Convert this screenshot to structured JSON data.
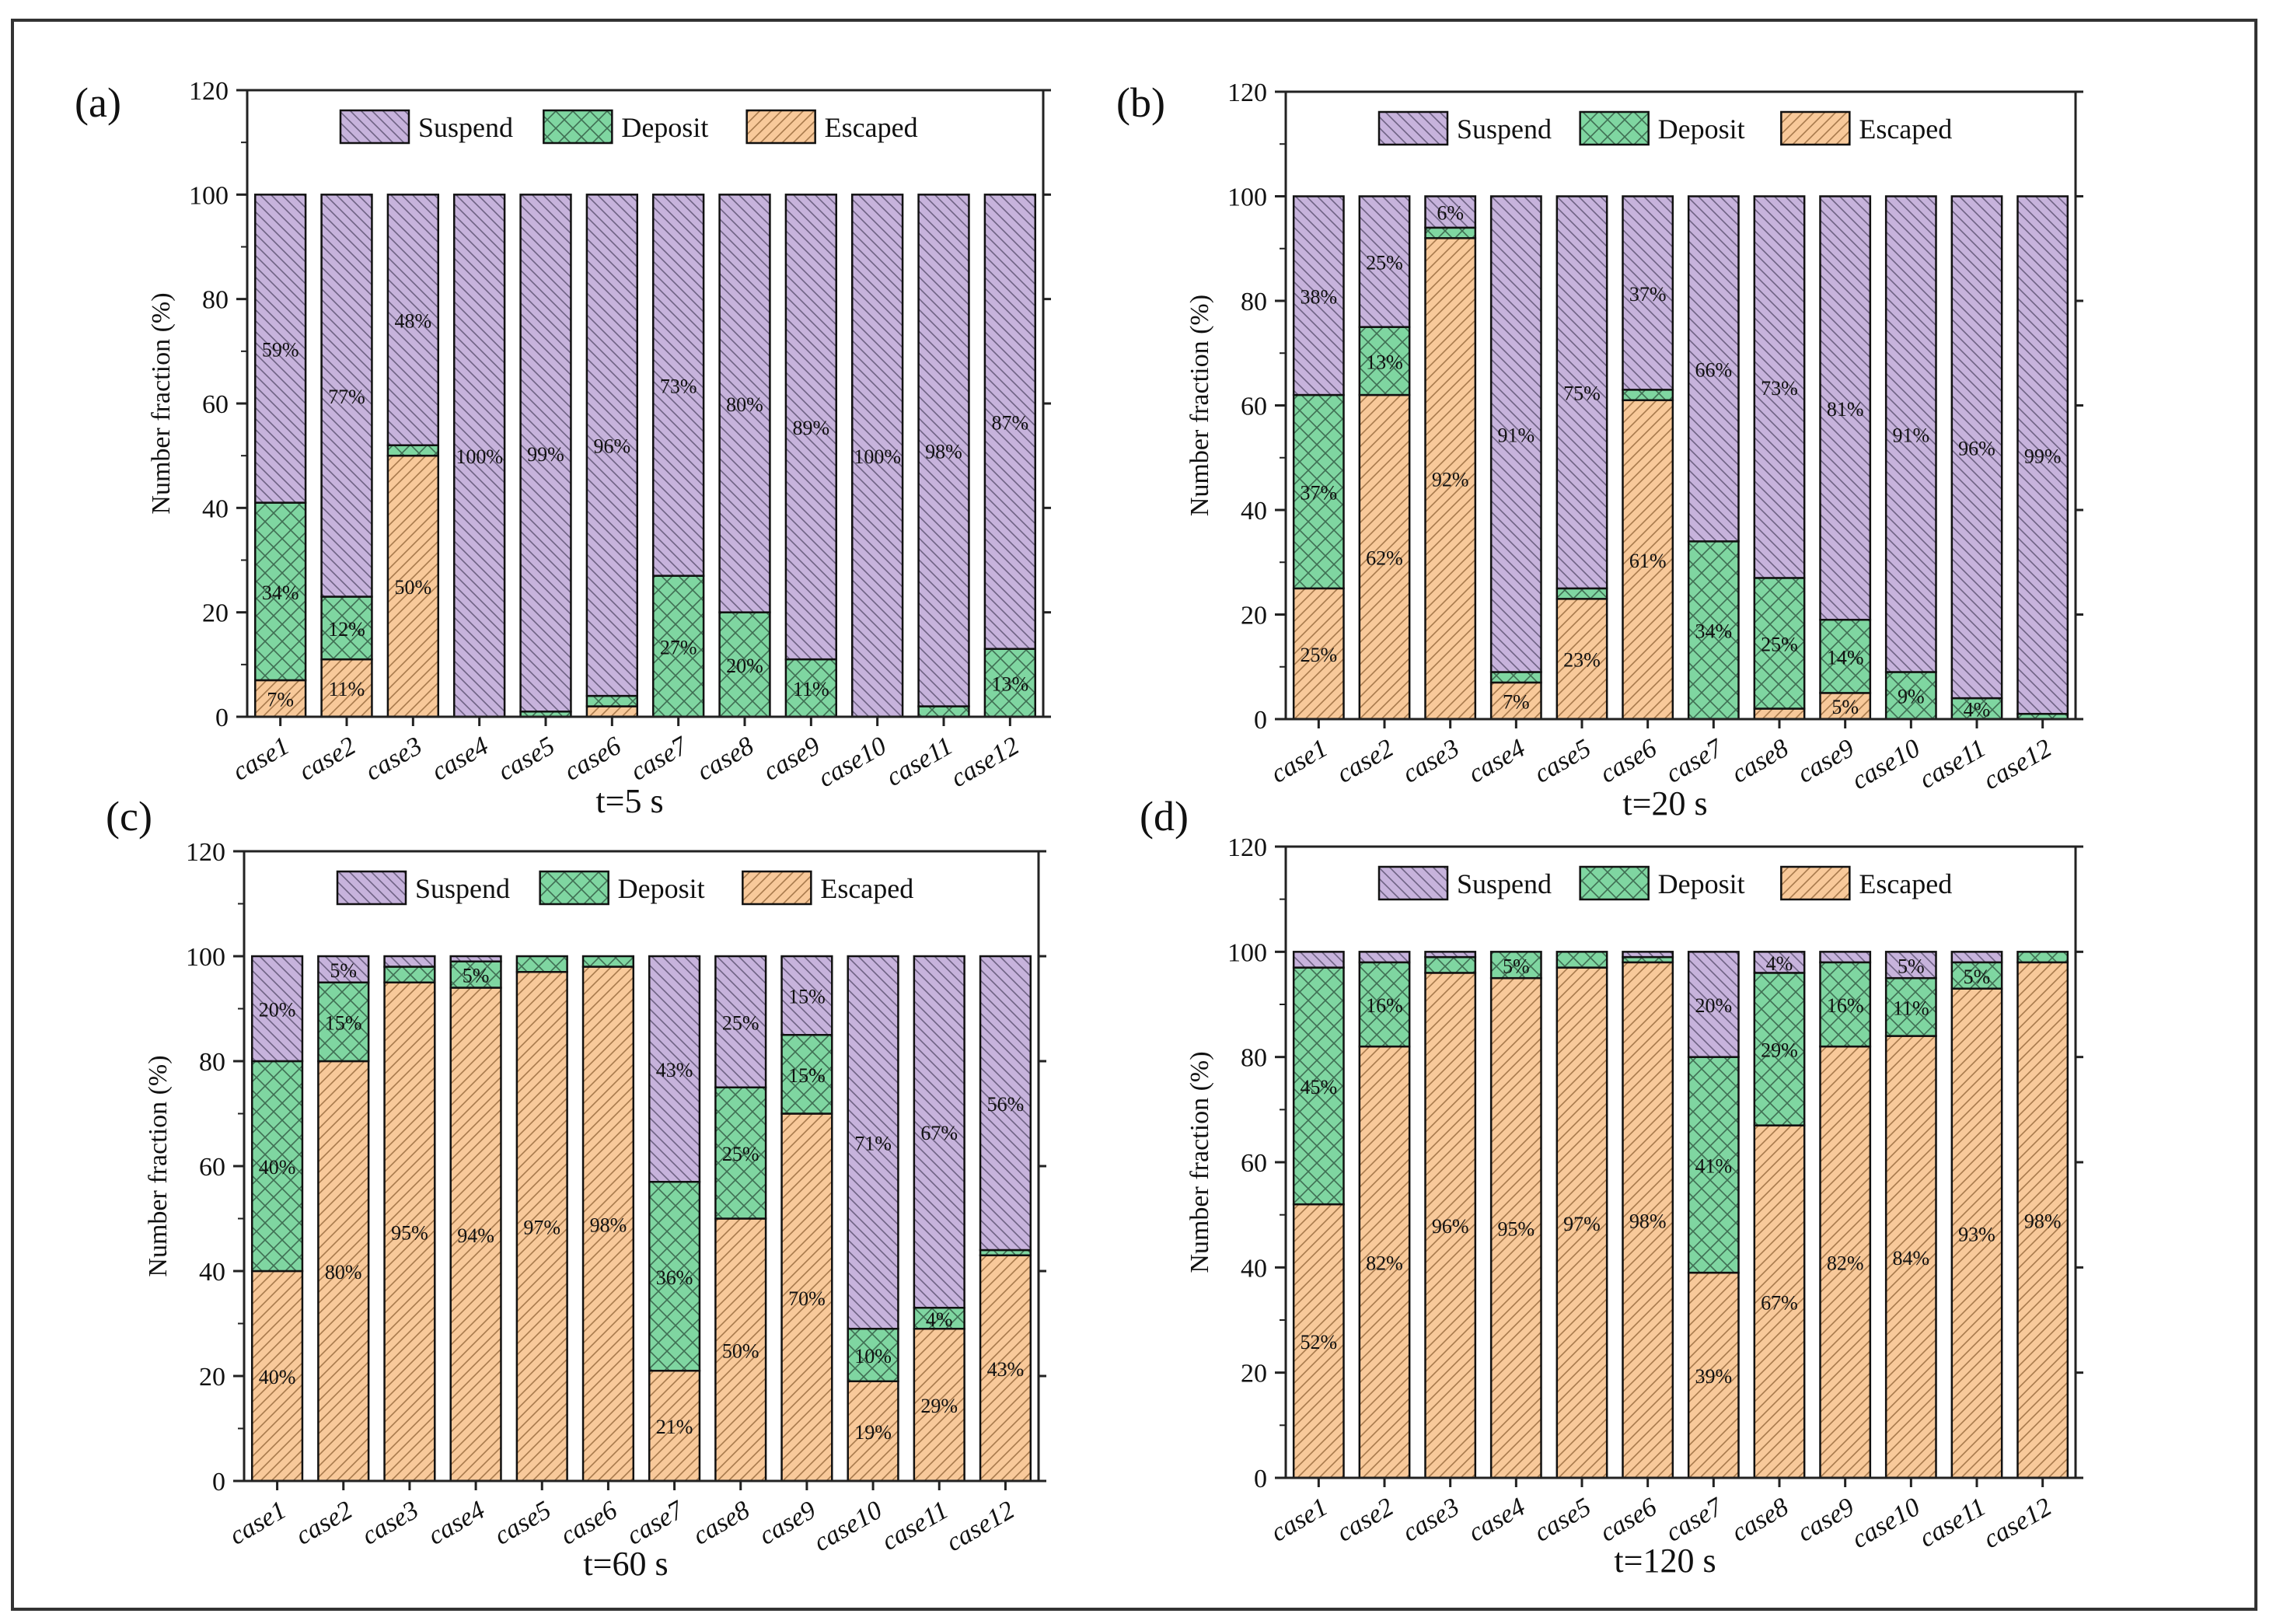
{
  "colors": {
    "suspend": "#c7b3dc",
    "deposit": "#7fd6a1",
    "escaped": "#f8c99a",
    "hatch": "#555555",
    "axis": "#222222"
  },
  "chart_data": [
    {
      "type": "bar",
      "stacked": true,
      "panel_label": "(a)",
      "title": "t=5 s",
      "xlabel": "",
      "ylabel": "Number fraction (%)",
      "ylim": [
        0,
        120
      ],
      "yticks": [
        0,
        20,
        40,
        60,
        80,
        100,
        120
      ],
      "legend": [
        "Suspend",
        "Deposit",
        "Escaped"
      ],
      "legend_position": "top",
      "categories": [
        "case1",
        "case2",
        "case3",
        "case4",
        "case5",
        "case6",
        "case7",
        "case8",
        "case9",
        "case10",
        "case11",
        "case12"
      ],
      "series": [
        {
          "name": "Escaped",
          "values": [
            7,
            11,
            50,
            0,
            0,
            2,
            0,
            0,
            0,
            0,
            0,
            0
          ],
          "labels": [
            "7%",
            "11%",
            "50%",
            "",
            "",
            "",
            "",
            "",
            "",
            "",
            "",
            ""
          ]
        },
        {
          "name": "Deposit",
          "values": [
            34,
            12,
            2,
            0,
            1,
            2,
            27,
            20,
            11,
            0,
            2,
            13
          ],
          "labels": [
            "34%",
            "12%",
            "",
            "",
            "",
            "",
            "27%",
            "20%",
            "11%",
            "",
            "",
            "13%"
          ]
        },
        {
          "name": "Suspend",
          "values": [
            59,
            77,
            48,
            100,
            99,
            96,
            73,
            80,
            89,
            100,
            98,
            87
          ],
          "labels": [
            "59%",
            "77%",
            "48%",
            "100%",
            "99%",
            "96%",
            "73%",
            "80%",
            "89%",
            "100%",
            "98%",
            "87%"
          ]
        }
      ]
    },
    {
      "type": "bar",
      "stacked": true,
      "panel_label": "(b)",
      "title": "t=20 s",
      "xlabel": "",
      "ylabel": "Number fraction (%)",
      "ylim": [
        0,
        120
      ],
      "yticks": [
        0,
        20,
        40,
        60,
        80,
        100,
        120
      ],
      "legend": [
        "Suspend",
        "Deposit",
        "Escaped"
      ],
      "legend_position": "top",
      "categories": [
        "case1",
        "case2",
        "case3",
        "case4",
        "case5",
        "case6",
        "case7",
        "case8",
        "case9",
        "case10",
        "case11",
        "case12"
      ],
      "series": [
        {
          "name": "Escaped",
          "values": [
            25,
            62,
            92,
            7,
            23,
            61,
            0,
            2,
            5,
            0,
            0,
            0
          ],
          "labels": [
            "25%",
            "62%",
            "92%",
            "7%",
            "23%",
            "61%",
            "",
            "",
            "5%",
            "",
            "",
            ""
          ]
        },
        {
          "name": "Deposit",
          "values": [
            37,
            13,
            2,
            2,
            2,
            2,
            34,
            25,
            14,
            9,
            4,
            1
          ],
          "labels": [
            "37%",
            "13%",
            "",
            "",
            "",
            "",
            "34%",
            "25%",
            "14%",
            "9%",
            "4%",
            ""
          ]
        },
        {
          "name": "Suspend",
          "values": [
            38,
            25,
            6,
            91,
            75,
            37,
            66,
            73,
            81,
            91,
            96,
            99
          ],
          "labels": [
            "38%",
            "25%",
            "6%",
            "91%",
            "75%",
            "37%",
            "66%",
            "73%",
            "81%",
            "91%",
            "96%",
            "99%"
          ]
        }
      ]
    },
    {
      "type": "bar",
      "stacked": true,
      "panel_label": "(c)",
      "title": "t=60 s",
      "xlabel": "",
      "ylabel": "Number fraction (%)",
      "ylim": [
        0,
        120
      ],
      "yticks": [
        0,
        20,
        40,
        60,
        80,
        100,
        120
      ],
      "legend": [
        "Suspend",
        "Deposit",
        "Escaped"
      ],
      "legend_position": "top",
      "categories": [
        "case1",
        "case2",
        "case3",
        "case4",
        "case5",
        "case6",
        "case7",
        "case8",
        "case9",
        "case10",
        "case11",
        "case12"
      ],
      "series": [
        {
          "name": "Escaped",
          "values": [
            40,
            80,
            95,
            94,
            97,
            98,
            21,
            50,
            70,
            19,
            29,
            43
          ],
          "labels": [
            "40%",
            "80%",
            "95%",
            "94%",
            "97%",
            "98%",
            "21%",
            "50%",
            "70%",
            "19%",
            "29%",
            "43%"
          ]
        },
        {
          "name": "Deposit",
          "values": [
            40,
            15,
            3,
            5,
            3,
            2,
            36,
            25,
            15,
            10,
            4,
            1
          ],
          "labels": [
            "40%",
            "15%",
            "",
            "5%",
            "",
            "",
            "36%",
            "25%",
            "15%",
            "10%",
            "4%",
            ""
          ]
        },
        {
          "name": "Suspend",
          "values": [
            20,
            5,
            2,
            1,
            0,
            0,
            43,
            25,
            15,
            71,
            67,
            56
          ],
          "labels": [
            "20%",
            "5%",
            "",
            "",
            "",
            "",
            "43%",
            "25%",
            "15%",
            "71%",
            "67%",
            "56%"
          ]
        }
      ]
    },
    {
      "type": "bar",
      "stacked": true,
      "panel_label": "(d)",
      "title": "t=120 s",
      "xlabel": "",
      "ylabel": "Number fraction (%)",
      "ylim": [
        0,
        120
      ],
      "yticks": [
        0,
        20,
        40,
        60,
        80,
        100,
        120
      ],
      "legend": [
        "Suspend",
        "Deposit",
        "Escaped"
      ],
      "legend_position": "top",
      "categories": [
        "case1",
        "case2",
        "case3",
        "case4",
        "case5",
        "case6",
        "case7",
        "case8",
        "case9",
        "case10",
        "case11",
        "case12"
      ],
      "series": [
        {
          "name": "Escaped",
          "values": [
            52,
            82,
            96,
            95,
            97,
            98,
            39,
            67,
            82,
            84,
            93,
            98
          ],
          "labels": [
            "52%",
            "82%",
            "96%",
            "95%",
            "97%",
            "98%",
            "39%",
            "67%",
            "82%",
            "84%",
            "93%",
            "98%"
          ]
        },
        {
          "name": "Deposit",
          "values": [
            45,
            16,
            3,
            5,
            3,
            1,
            41,
            29,
            16,
            11,
            5,
            2
          ],
          "labels": [
            "45%",
            "16%",
            "",
            "5%",
            "",
            "",
            "41%",
            "29%",
            "16%",
            "11%",
            "5%",
            ""
          ]
        },
        {
          "name": "Suspend",
          "values": [
            3,
            2,
            1,
            0,
            0,
            1,
            20,
            4,
            2,
            5,
            2,
            0
          ],
          "labels": [
            "",
            "",
            "",
            "",
            "",
            "",
            "20%",
            "4%",
            "",
            "5%",
            "",
            ""
          ]
        }
      ]
    }
  ]
}
